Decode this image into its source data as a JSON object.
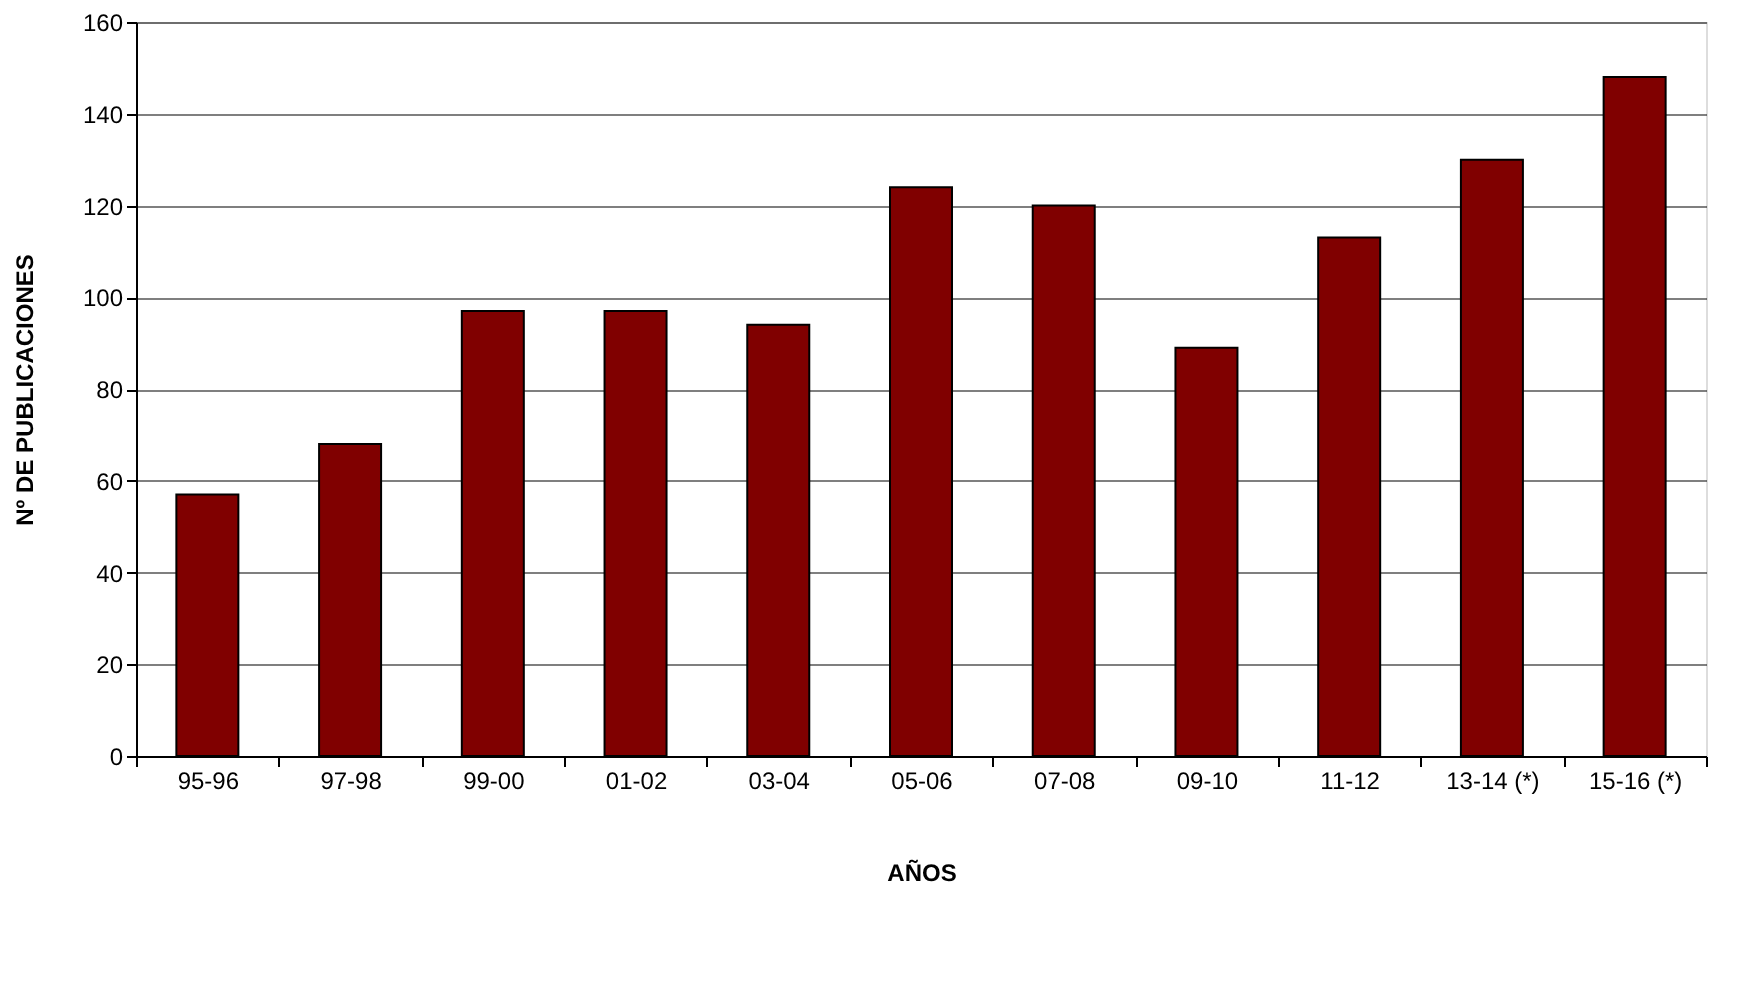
{
  "chart_data": {
    "type": "bar",
    "xlabel": "AÑOS",
    "ylabel": "Nº DE PUBLICACIONES",
    "categories": [
      "95-96",
      "97-98",
      "99-00",
      "01-02",
      "03-04",
      "05-06",
      "07-08",
      "09-10",
      "11-12",
      "13-14 (*)",
      "15-16 (*)"
    ],
    "values": [
      57,
      68,
      97,
      97,
      94,
      124,
      120,
      89,
      113,
      130,
      148
    ],
    "color": "#800000",
    "ylim": [
      0,
      160
    ],
    "yticks": [
      0,
      20,
      40,
      60,
      80,
      100,
      120,
      140,
      160
    ],
    "grid": "y"
  }
}
